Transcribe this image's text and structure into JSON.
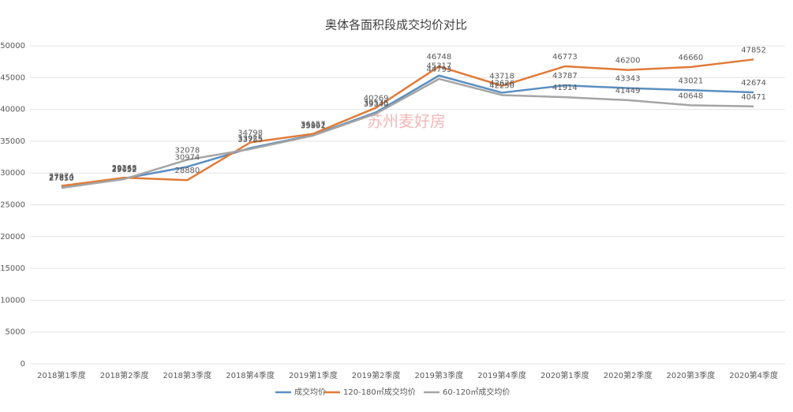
{
  "chart_data": {
    "type": "line",
    "title": "奥体各面积段成交均价对比",
    "categories": [
      "2018第1季度",
      "2018第2季度",
      "2018第3季度",
      "2018第4季度",
      "2019第1季度",
      "2019第2季度",
      "2019第3季度",
      "2019第4季度",
      "2020第1季度",
      "2020第2季度",
      "2020第3季度",
      "2020第4季度"
    ],
    "series": [
      {
        "name": "成交均价",
        "color": "#5b8fc0",
        "values": [
          27810,
          29152,
          30974,
          33925,
          35962,
          39535,
          45317,
          42626,
          43787,
          43343,
          43021,
          42674
        ]
      },
      {
        "name": "120-180㎡成交均价",
        "color": "#e07b39",
        "values": [
          27974,
          29268,
          28880,
          34798,
          36157,
          40269,
          46748,
          43718,
          46773,
          46200,
          46660,
          47852
        ]
      },
      {
        "name": "60-120㎡成交均价",
        "color": "#a5a5a5",
        "values": [
          27650,
          29052,
          32078,
          33755,
          35891,
          39340,
          44793,
          42250,
          41914,
          41449,
          40648,
          40471
        ]
      }
    ],
    "ylim": [
      0,
      50000
    ],
    "yticks": [
      0,
      5000,
      10000,
      15000,
      20000,
      25000,
      30000,
      35000,
      40000,
      45000,
      50000
    ],
    "grid": true,
    "legend": "bottom",
    "watermark": "苏州麦好房"
  }
}
